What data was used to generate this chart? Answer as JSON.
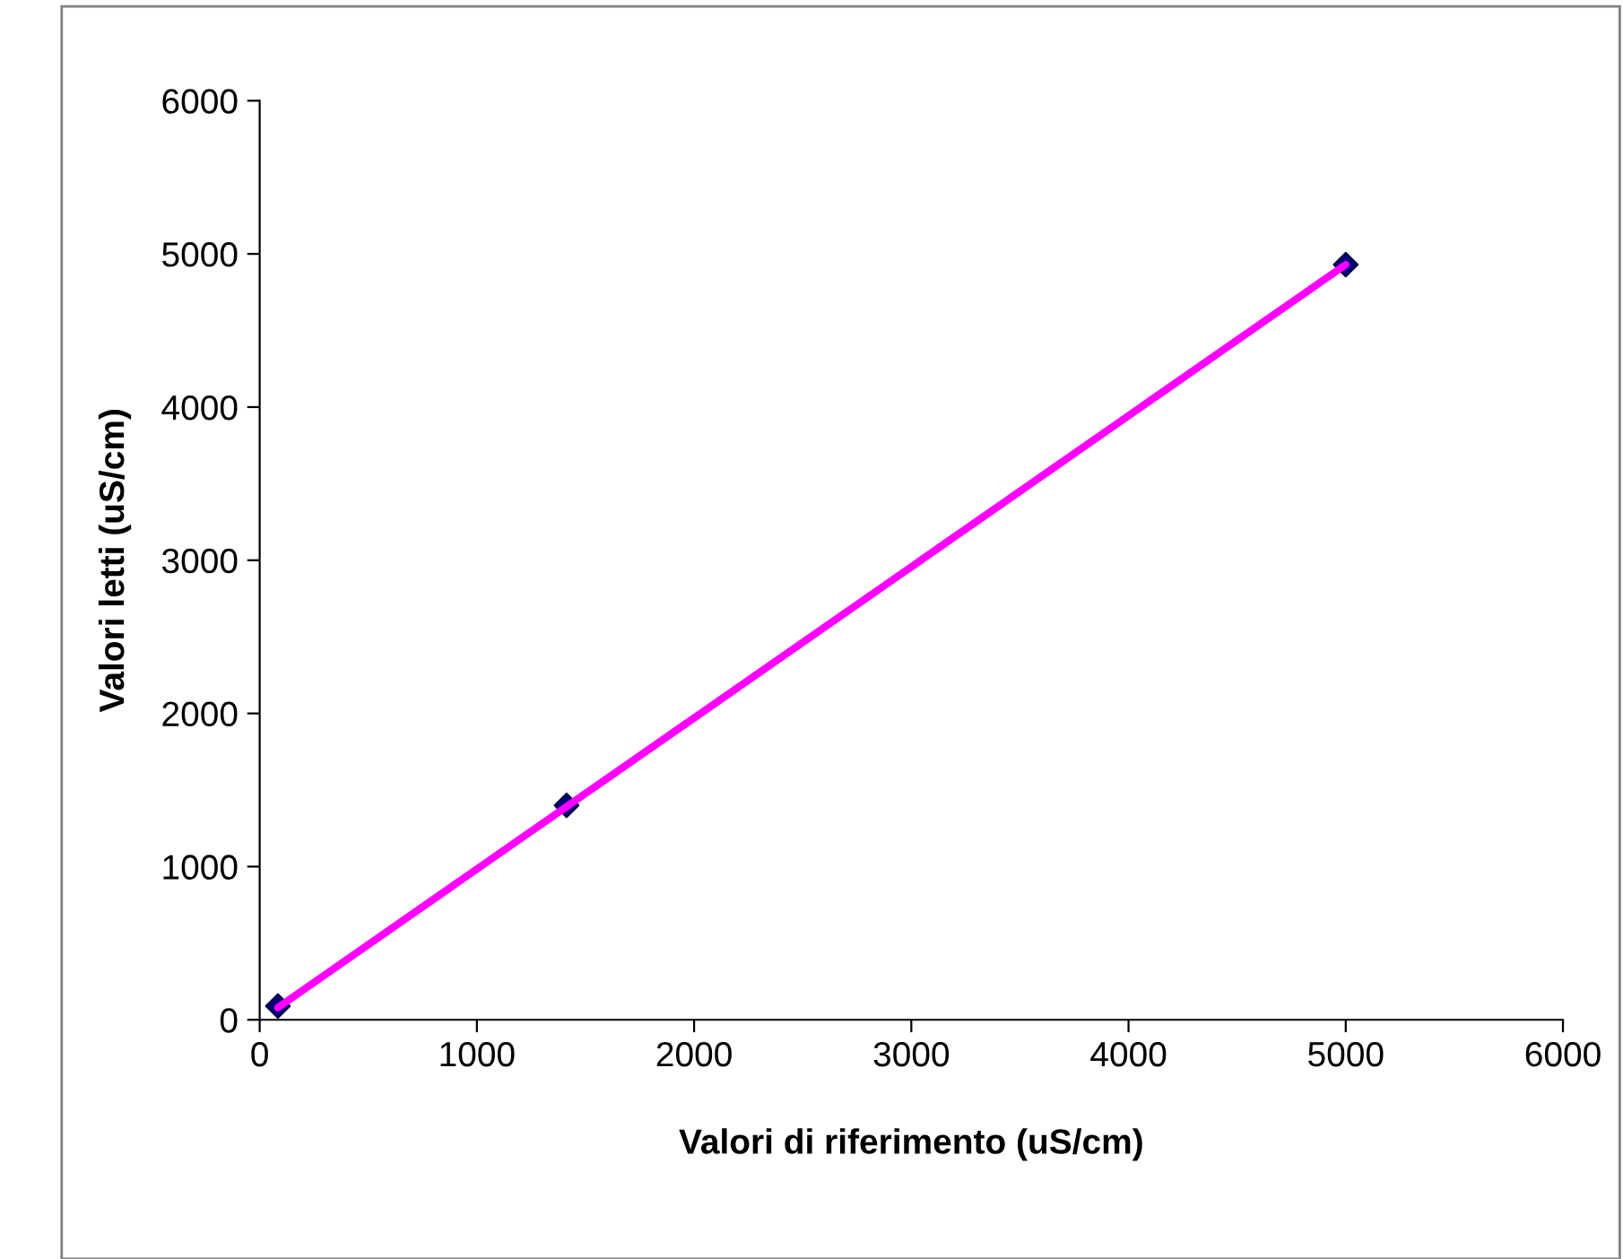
{
  "chart_data": {
    "type": "scatter",
    "xlabel": "Valori di riferimento (uS/cm)",
    "ylabel": "Valori letti (uS/cm)",
    "series": [
      {
        "color": "#000080",
        "marker": "diamond",
        "x": [
          84,
          1413,
          5000
        ],
        "values": [
          90,
          1400,
          4930
        ]
      },
      {
        "type": "line",
        "color": "#ff00ff",
        "marker": "none",
        "line_style": "solid",
        "x": [
          84,
          5000
        ],
        "values": [
          80,
          4930
        ]
      }
    ],
    "xlim": [
      0,
      6000
    ],
    "xticks": [
      0,
      1000,
      2000,
      3000,
      4000,
      5000,
      6000
    ],
    "ylim": [
      0,
      6000
    ],
    "yticks": [
      0,
      1000,
      2000,
      3000,
      4000,
      5000,
      6000
    ],
    "grid": false
  }
}
